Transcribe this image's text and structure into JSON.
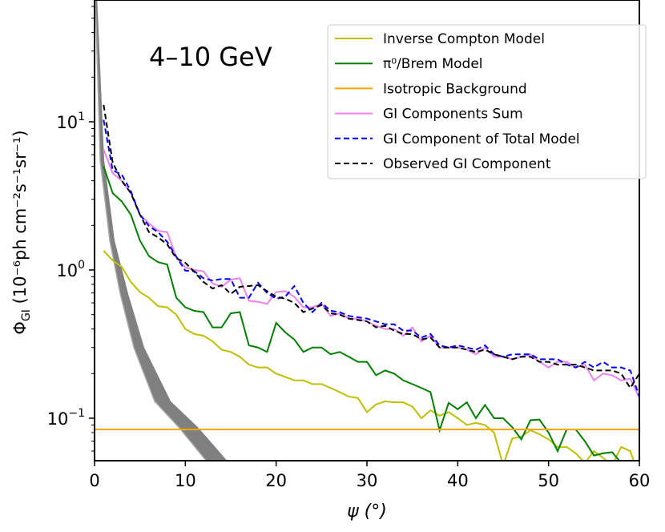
{
  "chart_data": {
    "type": "line",
    "title": "4–10 GeV",
    "xlabel": "ψ (°)",
    "ylabel": {
      "main": "Φ",
      "sub": "GI",
      "units": "(10⁻⁶ph cm⁻²s⁻¹sr⁻¹)"
    },
    "xlim": [
      0,
      60
    ],
    "ylim": [
      0.052,
      66
    ],
    "yscale": "log",
    "grid": false,
    "legend_position": "top-right",
    "x_ticks": [
      "0",
      "10",
      "20",
      "30",
      "40",
      "50",
      "60"
    ],
    "x_tick_values": [
      0,
      10,
      20,
      30,
      40,
      50,
      60
    ],
    "y_ticks": [
      {
        "value": 0.1,
        "base": "10",
        "exp": "−1"
      },
      {
        "value": 1,
        "base": "10",
        "exp": "0"
      },
      {
        "value": 10,
        "base": "10",
        "exp": "1"
      }
    ],
    "x": [
      1,
      2,
      3,
      4,
      5,
      6,
      7,
      8,
      9,
      10,
      11,
      12,
      13,
      14,
      15,
      16,
      17,
      18,
      19,
      20,
      21,
      22,
      23,
      24,
      25,
      26,
      27,
      28,
      29,
      30,
      31,
      32,
      33,
      34,
      35,
      36,
      37,
      38,
      39,
      40,
      41,
      42,
      43,
      44,
      45,
      46,
      47,
      48,
      49,
      50,
      51,
      52,
      53,
      54,
      55,
      56,
      57,
      58,
      59,
      60
    ],
    "series": [
      {
        "name": "Inverse Compton Model",
        "color": "#bfbf00",
        "dash": false,
        "values": [
          1.35,
          1.16,
          1.05,
          0.83,
          0.71,
          0.65,
          0.57,
          0.56,
          0.5,
          0.4,
          0.37,
          0.36,
          0.33,
          0.29,
          0.28,
          0.26,
          0.23,
          0.22,
          0.22,
          0.2,
          0.19,
          0.18,
          0.18,
          0.17,
          0.17,
          0.16,
          0.15,
          0.14,
          0.137,
          0.11,
          0.124,
          0.13,
          0.128,
          0.128,
          0.12,
          0.1,
          0.113,
          0.104,
          0.11,
          0.1,
          0.09,
          0.093,
          0.09,
          0.08,
          0.048,
          0.073,
          0.075,
          0.083,
          0.078,
          0.072,
          0.064,
          0.064,
          0.058,
          0.05,
          0.06,
          0.054,
          0.048,
          0.064,
          0.06,
          0.04
        ]
      },
      {
        "name": "π⁰/Brem Model",
        "color": "#008000",
        "dash": false,
        "values": [
          5.0,
          3.3,
          2.9,
          2.36,
          1.58,
          1.24,
          1.13,
          1.09,
          0.65,
          0.56,
          0.53,
          0.52,
          0.41,
          0.41,
          0.51,
          0.52,
          0.31,
          0.3,
          0.28,
          0.44,
          0.38,
          0.34,
          0.28,
          0.3,
          0.3,
          0.27,
          0.28,
          0.26,
          0.24,
          0.24,
          0.195,
          0.21,
          0.2,
          0.18,
          0.17,
          0.16,
          0.15,
          0.083,
          0.127,
          0.115,
          0.128,
          0.1,
          0.123,
          0.1,
          0.1,
          0.087,
          0.072,
          0.097,
          0.098,
          0.08,
          0.06,
          0.084,
          0.084,
          0.07,
          0.056,
          0.058,
          0.059,
          0.05,
          0.05,
          0.045
        ]
      },
      {
        "name": "Isotropic Background",
        "color": "#ffa500",
        "dash": false,
        "constant": 0.084
      },
      {
        "name": "GI Components Sum",
        "color": "#ee82ee",
        "dash": false,
        "values": [
          6.5,
          4.5,
          4.0,
          3.3,
          2.36,
          2.06,
          1.84,
          1.8,
          1.22,
          1.04,
          1.0,
          0.98,
          0.81,
          0.77,
          0.86,
          0.88,
          0.62,
          0.61,
          0.59,
          0.71,
          0.72,
          0.66,
          0.56,
          0.56,
          0.59,
          0.49,
          0.51,
          0.47,
          0.47,
          0.45,
          0.42,
          0.4,
          0.4,
          0.36,
          0.41,
          0.33,
          0.36,
          0.3,
          0.3,
          0.3,
          0.29,
          0.27,
          0.3,
          0.26,
          0.26,
          0.25,
          0.26,
          0.27,
          0.24,
          0.22,
          0.24,
          0.24,
          0.22,
          0.23,
          0.18,
          0.2,
          0.195,
          0.18,
          0.185,
          0.137
        ]
      },
      {
        "name": "GI Component of Total Model",
        "color": "#0000ff",
        "dash": true,
        "values": [
          10.3,
          4.7,
          4.4,
          3.4,
          2.36,
          1.98,
          1.8,
          1.55,
          1.23,
          0.99,
          0.98,
          0.88,
          0.85,
          0.87,
          0.87,
          0.65,
          0.65,
          0.82,
          0.7,
          0.64,
          0.66,
          0.78,
          0.6,
          0.52,
          0.6,
          0.53,
          0.52,
          0.49,
          0.48,
          0.47,
          0.45,
          0.43,
          0.43,
          0.39,
          0.39,
          0.35,
          0.37,
          0.31,
          0.3,
          0.31,
          0.3,
          0.29,
          0.31,
          0.27,
          0.26,
          0.27,
          0.27,
          0.27,
          0.25,
          0.25,
          0.25,
          0.23,
          0.22,
          0.24,
          0.22,
          0.24,
          0.22,
          0.22,
          0.21,
          0.14
        ]
      },
      {
        "name": "Observed GI Component",
        "color": "#000000",
        "dash": true,
        "values": [
          13,
          5.3,
          4.0,
          3.3,
          2.36,
          1.8,
          1.66,
          1.49,
          1.2,
          1.12,
          0.97,
          0.83,
          0.75,
          0.79,
          0.69,
          0.77,
          0.78,
          0.79,
          0.72,
          0.66,
          0.64,
          0.6,
          0.52,
          0.55,
          0.58,
          0.51,
          0.5,
          0.47,
          0.46,
          0.45,
          0.41,
          0.42,
          0.39,
          0.37,
          0.37,
          0.34,
          0.35,
          0.3,
          0.3,
          0.3,
          0.29,
          0.28,
          0.29,
          0.27,
          0.26,
          0.25,
          0.26,
          0.26,
          0.24,
          0.24,
          0.23,
          0.23,
          0.23,
          0.22,
          0.21,
          0.21,
          0.21,
          0.2,
          0.16,
          0.2
        ]
      }
    ],
    "emission_band": {
      "color": "#808080",
      "phi": [
        66,
        5.5,
        1.58,
        0.69,
        0.3,
        0.13,
        0.087,
        0.052
      ],
      "psi_inner": [
        0.1,
        0.62,
        1.68,
        2.83,
        4.33,
        6.62,
        9.27,
        12.26
      ],
      "psi_outer": [
        0.3,
        1.06,
        2.21,
        3.71,
        5.47,
        8.39,
        11.39,
        14.56
      ]
    }
  }
}
